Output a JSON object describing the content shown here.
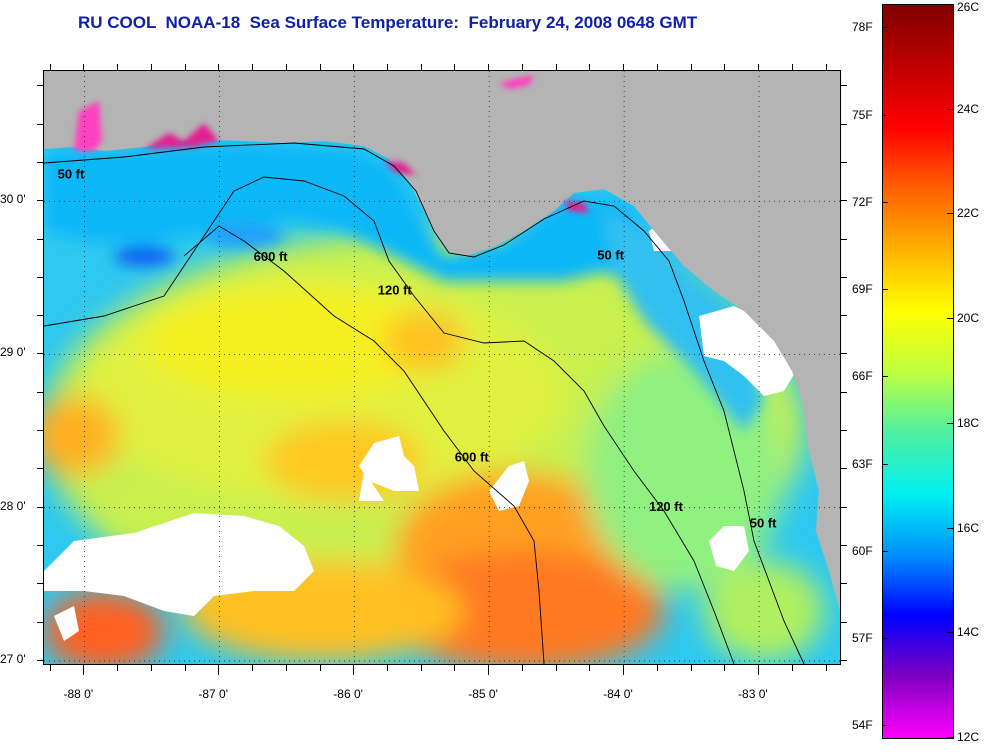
{
  "title": "RU COOL  NOAA-18  Sea Surface Temperature:  February 24, 2008 0648 GMT",
  "map": {
    "lon_range": [
      -88.3,
      -82.4
    ],
    "lat_range": [
      26.98,
      30.85
    ],
    "lon_ticks": [
      {
        "value": -88,
        "label": "-88 0'"
      },
      {
        "value": -87,
        "label": "-87 0'"
      },
      {
        "value": -86,
        "label": "-86 0'"
      },
      {
        "value": -85,
        "label": "-85 0'"
      },
      {
        "value": -84,
        "label": "-84 0'"
      },
      {
        "value": -83,
        "label": "-83 0'"
      }
    ],
    "lat_ticks": [
      {
        "value": 30,
        "label": "30 0'"
      },
      {
        "value": 29,
        "label": "29 0'"
      },
      {
        "value": 28,
        "label": "28 0'"
      },
      {
        "value": 27,
        "label": "27 0'"
      }
    ],
    "grid": "dotted",
    "land_color": "#b4b4b4",
    "cloud_color": "#ffffff",
    "contours": [
      {
        "label": "50 ft",
        "label_positions": [
          {
            "lon": -88.1,
            "lat": 30.15
          },
          {
            "lon": -84.1,
            "lat": 29.62
          },
          {
            "lon": -82.97,
            "lat": 27.87
          }
        ]
      },
      {
        "label": "120 ft",
        "label_positions": [
          {
            "lon": -85.7,
            "lat": 29.39
          },
          {
            "lon": -83.69,
            "lat": 27.98
          }
        ]
      },
      {
        "label": "600 ft",
        "label_positions": [
          {
            "lon": -86.62,
            "lat": 29.61
          },
          {
            "lon": -85.13,
            "lat": 28.3
          }
        ]
      }
    ]
  },
  "colorbar": {
    "min_c": 12,
    "max_c": 26,
    "celsius_labels": [
      "26C",
      "24C",
      "22C",
      "20C",
      "18C",
      "16C",
      "14C",
      "12C"
    ],
    "fahrenheit_labels": [
      "78F",
      "75F",
      "72F",
      "69F",
      "66F",
      "63F",
      "60F",
      "57F",
      "54F"
    ],
    "fahrenheit_values": [
      78,
      75,
      72,
      69,
      66,
      63,
      60,
      57,
      54
    ],
    "colors": [
      "#ff00ff",
      "#8000c0",
      "#0000ff",
      "#0090ff",
      "#00f0f0",
      "#50f0a0",
      "#c0ff40",
      "#ffff00",
      "#ffb000",
      "#ff6000",
      "#ff0000",
      "#c00000",
      "#800000"
    ]
  }
}
